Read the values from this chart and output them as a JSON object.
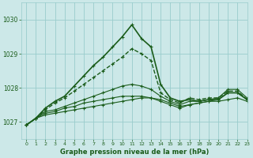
{
  "title": "Graphe pression niveau de la mer (hPa)",
  "background_color": "#cce8e8",
  "grid_color": "#99cccc",
  "line_color": "#1a5c1a",
  "xlim": [
    -0.5,
    23
  ],
  "ylim": [
    1026.5,
    1030.5
  ],
  "yticks": [
    1027,
    1028,
    1029,
    1030
  ],
  "xticks": [
    0,
    1,
    2,
    3,
    4,
    5,
    6,
    7,
    8,
    9,
    10,
    11,
    12,
    13,
    14,
    15,
    16,
    17,
    18,
    19,
    20,
    21,
    22,
    23
  ],
  "series": [
    {
      "y": [
        1026.9,
        1027.1,
        1027.2,
        1027.25,
        1027.3,
        1027.35,
        1027.4,
        1027.45,
        1027.5,
        1027.55,
        1027.6,
        1027.65,
        1027.7,
        1027.7,
        1027.65,
        1027.55,
        1027.45,
        1027.5,
        1027.55,
        1027.6,
        1027.6,
        1027.65,
        1027.7,
        1027.6
      ],
      "lw": 0.8,
      "dashed": false
    },
    {
      "y": [
        1026.9,
        1027.1,
        1027.25,
        1027.3,
        1027.4,
        1027.45,
        1027.55,
        1027.6,
        1027.65,
        1027.7,
        1027.75,
        1027.75,
        1027.75,
        1027.7,
        1027.6,
        1027.5,
        1027.4,
        1027.5,
        1027.55,
        1027.6,
        1027.65,
        1027.85,
        1027.85,
        1027.65
      ],
      "lw": 0.8,
      "dashed": false
    },
    {
      "y": [
        1026.9,
        1027.1,
        1027.3,
        1027.35,
        1027.45,
        1027.55,
        1027.65,
        1027.75,
        1027.85,
        1027.95,
        1028.05,
        1028.1,
        1028.05,
        1027.95,
        1027.75,
        1027.6,
        1027.5,
        1027.6,
        1027.6,
        1027.65,
        1027.7,
        1027.95,
        1027.95,
        1027.7
      ],
      "lw": 0.8,
      "dashed": false
    },
    {
      "y": [
        1026.9,
        1027.1,
        1027.35,
        1027.55,
        1027.7,
        1027.9,
        1028.1,
        1028.3,
        1028.5,
        1028.7,
        1028.9,
        1029.15,
        1029.0,
        1028.8,
        1027.85,
        1027.65,
        1027.55,
        1027.7,
        1027.65,
        1027.7,
        1027.7,
        1027.9,
        1027.9,
        1027.65
      ],
      "lw": 1.0,
      "dashed": true
    },
    {
      "y": [
        1026.9,
        1027.1,
        1027.4,
        1027.6,
        1027.75,
        1028.05,
        1028.35,
        1028.65,
        1028.9,
        1029.2,
        1029.5,
        1029.85,
        1029.45,
        1029.2,
        1028.1,
        1027.7,
        1027.6,
        1027.65,
        1027.6,
        1027.65,
        1027.65,
        1027.85,
        1027.85,
        1027.65
      ],
      "lw": 1.2,
      "dashed": false
    }
  ]
}
